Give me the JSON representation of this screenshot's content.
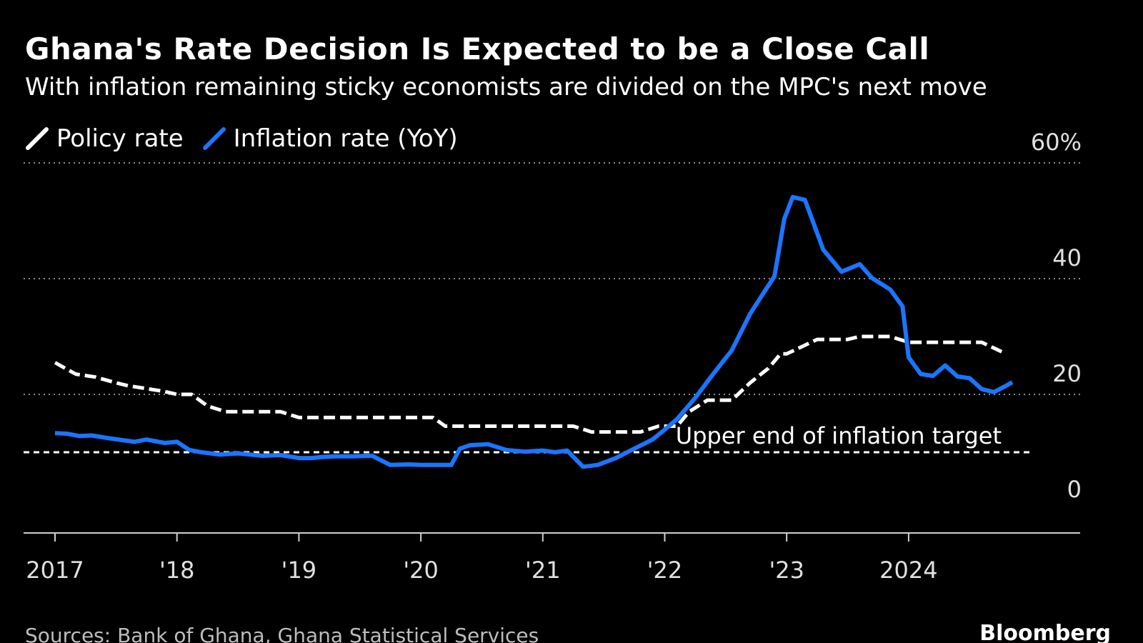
{
  "title": "Ghana's Rate Decision Is Expected to be a Close Call",
  "subtitle": "With inflation remaining sticky economists are divided on the MPC's next move",
  "legend": {
    "policy_label": "Policy rate",
    "inflation_label": "Inflation rate (YoY)"
  },
  "footer": {
    "source": "Sources: Bank of Ghana, Ghana Statistical Services",
    "brand": "Bloomberg"
  },
  "colors": {
    "background": "#000000",
    "policy": "#ffffff",
    "inflation": "#1a75ff",
    "grid": "#8c8c8c",
    "text": "#ffffff",
    "axis_text": "#e0e0e0"
  },
  "chart_data": {
    "type": "line",
    "x_unit": "year (decimal)",
    "xlim": [
      2016.75,
      2025.45
    ],
    "ylim": [
      -4,
      60
    ],
    "x_ticks": [
      {
        "value": 2017,
        "label": "2017"
      },
      {
        "value": 2018,
        "label": "'18"
      },
      {
        "value": 2019,
        "label": "'19"
      },
      {
        "value": 2020,
        "label": "'20"
      },
      {
        "value": 2021,
        "label": "'21"
      },
      {
        "value": 2022,
        "label": "'22"
      },
      {
        "value": 2023,
        "label": "'23"
      },
      {
        "value": 2024,
        "label": "2024"
      }
    ],
    "y_ticks": [
      {
        "value": 60,
        "label": "60%"
      },
      {
        "value": 40,
        "label": "40"
      },
      {
        "value": 20,
        "label": "20"
      },
      {
        "value": 0,
        "label": "0"
      }
    ],
    "grid": "horizontal dotted",
    "legend_position": "top-left",
    "annotation": {
      "label": "Upper end of inflation target",
      "value": 10,
      "style": "dashed"
    },
    "series": [
      {
        "name": "Policy rate",
        "style": "dashed",
        "points": [
          [
            2017.0,
            25.5
          ],
          [
            2017.17,
            23.5
          ],
          [
            2017.33,
            23.0
          ],
          [
            2017.5,
            22.0
          ],
          [
            2017.6,
            21.5
          ],
          [
            2017.75,
            21.0
          ],
          [
            2017.9,
            20.5
          ],
          [
            2018.0,
            20.0
          ],
          [
            2018.12,
            20.0
          ],
          [
            2018.25,
            18.0
          ],
          [
            2018.4,
            17.0
          ],
          [
            2018.6,
            17.0
          ],
          [
            2018.85,
            17.0
          ],
          [
            2019.0,
            16.0
          ],
          [
            2019.2,
            16.0
          ],
          [
            2019.5,
            16.0
          ],
          [
            2019.8,
            16.0
          ],
          [
            2020.1,
            16.0
          ],
          [
            2020.2,
            14.5
          ],
          [
            2020.5,
            14.5
          ],
          [
            2020.8,
            14.5
          ],
          [
            2021.0,
            14.5
          ],
          [
            2021.25,
            14.5
          ],
          [
            2021.4,
            13.5
          ],
          [
            2021.8,
            13.5
          ],
          [
            2021.95,
            14.5
          ],
          [
            2022.1,
            14.5
          ],
          [
            2022.2,
            17.0
          ],
          [
            2022.35,
            19.0
          ],
          [
            2022.55,
            19.0
          ],
          [
            2022.7,
            22.0
          ],
          [
            2022.85,
            24.5
          ],
          [
            2022.95,
            27.0
          ],
          [
            2023.0,
            27.0
          ],
          [
            2023.25,
            29.5
          ],
          [
            2023.5,
            29.5
          ],
          [
            2023.6,
            30.0
          ],
          [
            2023.85,
            30.0
          ],
          [
            2024.0,
            29.0
          ],
          [
            2024.15,
            29.0
          ],
          [
            2024.5,
            29.0
          ],
          [
            2024.6,
            29.0
          ],
          [
            2024.8,
            27.0
          ]
        ]
      },
      {
        "name": "Inflation rate (YoY)",
        "style": "solid",
        "points": [
          [
            2017.0,
            13.3
          ],
          [
            2017.1,
            13.2
          ],
          [
            2017.2,
            12.8
          ],
          [
            2017.3,
            12.9
          ],
          [
            2017.45,
            12.4
          ],
          [
            2017.55,
            12.1
          ],
          [
            2017.65,
            11.8
          ],
          [
            2017.75,
            12.2
          ],
          [
            2017.9,
            11.6
          ],
          [
            2018.0,
            11.8
          ],
          [
            2018.1,
            10.4
          ],
          [
            2018.2,
            10.0
          ],
          [
            2018.35,
            9.6
          ],
          [
            2018.5,
            9.8
          ],
          [
            2018.6,
            9.6
          ],
          [
            2018.7,
            9.4
          ],
          [
            2018.85,
            9.5
          ],
          [
            2019.0,
            9.0
          ],
          [
            2019.1,
            9.0
          ],
          [
            2019.2,
            9.2
          ],
          [
            2019.3,
            9.3
          ],
          [
            2019.45,
            9.3
          ],
          [
            2019.6,
            9.4
          ],
          [
            2019.75,
            7.8
          ],
          [
            2019.9,
            7.9
          ],
          [
            2020.0,
            7.8
          ],
          [
            2020.25,
            7.8
          ],
          [
            2020.32,
            10.6
          ],
          [
            2020.4,
            11.2
          ],
          [
            2020.55,
            11.4
          ],
          [
            2020.7,
            10.4
          ],
          [
            2020.85,
            10.1
          ],
          [
            2021.0,
            10.3
          ],
          [
            2021.1,
            10.0
          ],
          [
            2021.2,
            10.3
          ],
          [
            2021.33,
            7.5
          ],
          [
            2021.45,
            7.8
          ],
          [
            2021.6,
            9.0
          ],
          [
            2021.75,
            10.6
          ],
          [
            2021.9,
            12.2
          ],
          [
            2022.0,
            13.9
          ],
          [
            2022.1,
            15.7
          ],
          [
            2022.25,
            19.4
          ],
          [
            2022.4,
            23.6
          ],
          [
            2022.55,
            27.6
          ],
          [
            2022.7,
            33.9
          ],
          [
            2022.8,
            37.2
          ],
          [
            2022.9,
            40.4
          ],
          [
            2022.98,
            50.3
          ],
          [
            2023.05,
            54.1
          ],
          [
            2023.15,
            53.6
          ],
          [
            2023.3,
            45.0
          ],
          [
            2023.45,
            41.2
          ],
          [
            2023.6,
            42.5
          ],
          [
            2023.7,
            40.1
          ],
          [
            2023.85,
            38.1
          ],
          [
            2023.95,
            35.2
          ],
          [
            2024.0,
            26.4
          ],
          [
            2024.1,
            23.5
          ],
          [
            2024.2,
            23.2
          ],
          [
            2024.3,
            25.0
          ],
          [
            2024.4,
            23.1
          ],
          [
            2024.5,
            22.8
          ],
          [
            2024.6,
            20.9
          ],
          [
            2024.7,
            20.4
          ],
          [
            2024.8,
            21.5
          ],
          [
            2024.85,
            22.1
          ]
        ]
      }
    ]
  }
}
